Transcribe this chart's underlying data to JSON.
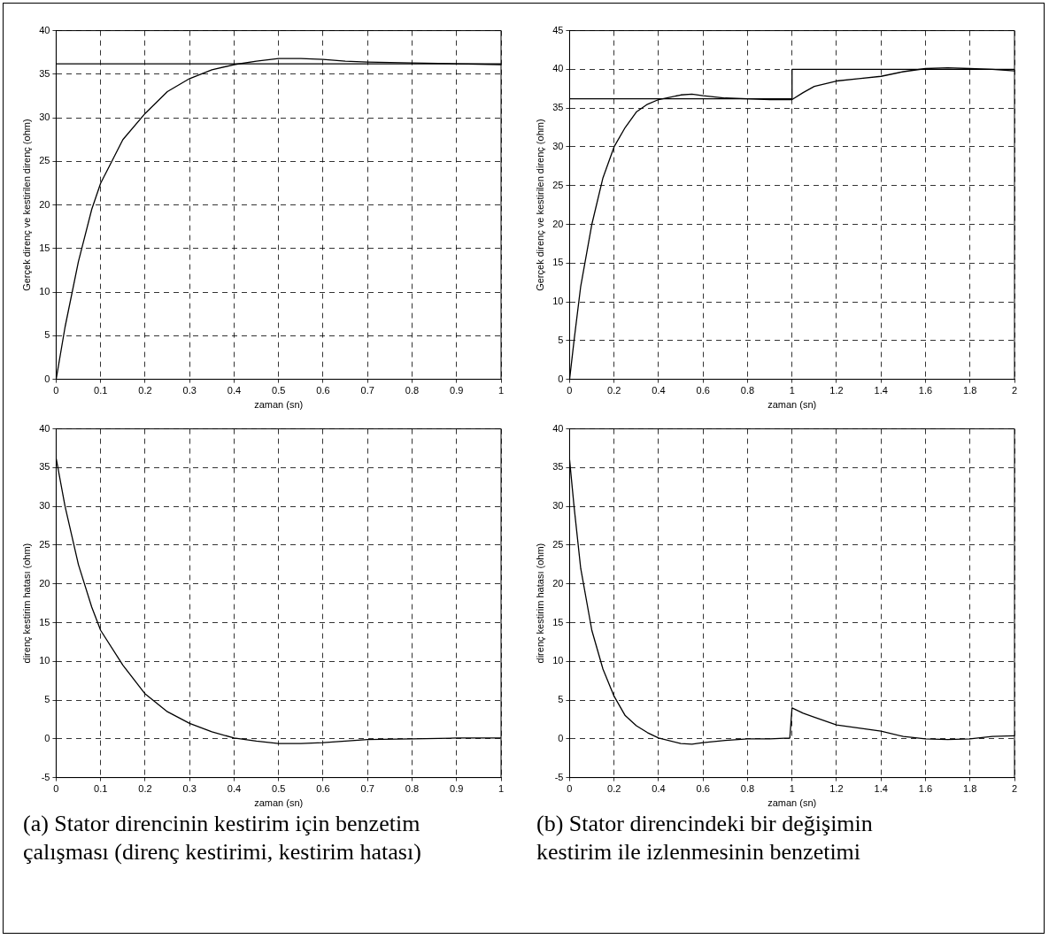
{
  "chart_data": [
    {
      "type": "line",
      "xlabel": "zaman (sn)",
      "ylabel": "Gerçek direnç ve kestirilen direnç (ohm)",
      "xlim": [
        0,
        1
      ],
      "xticks": [
        0,
        0.1,
        0.2,
        0.3,
        0.4,
        0.5,
        0.6,
        0.7,
        0.8,
        0.9,
        1
      ],
      "ylim": [
        0,
        40
      ],
      "yticks": [
        0,
        5,
        10,
        15,
        20,
        25,
        30,
        35,
        40
      ],
      "grid": true,
      "series": [
        {
          "color": "#000000",
          "x": [
            0,
            1
          ],
          "values": [
            36.2,
            36.2
          ]
        },
        {
          "color": "#000000",
          "x": [
            0,
            0.02,
            0.05,
            0.08,
            0.1,
            0.13,
            0.15,
            0.2,
            0.25,
            0.3,
            0.35,
            0.4,
            0.45,
            0.5,
            0.55,
            0.6,
            0.65,
            0.7,
            0.8,
            0.9,
            1
          ],
          "values": [
            0,
            6,
            13.5,
            19.5,
            22.5,
            25.5,
            27.5,
            30.5,
            33,
            34.5,
            35.5,
            36.1,
            36.5,
            36.8,
            36.8,
            36.7,
            36.5,
            36.4,
            36.3,
            36.2,
            36.1
          ]
        }
      ]
    },
    {
      "type": "line",
      "xlabel": "zaman (sn)",
      "ylabel": "Gerçek direnç ve kestirilen direnç (ohm)",
      "xlim": [
        0,
        2
      ],
      "xticks": [
        0,
        0.2,
        0.4,
        0.6,
        0.8,
        1,
        1.2,
        1.4,
        1.6,
        1.8,
        2
      ],
      "ylim": [
        0,
        45
      ],
      "yticks": [
        0,
        5,
        10,
        15,
        20,
        25,
        30,
        35,
        40,
        45
      ],
      "grid": true,
      "series": [
        {
          "color": "#000000",
          "x": [
            0,
            1,
            1,
            2
          ],
          "values": [
            36.2,
            36.2,
            40,
            40
          ]
        },
        {
          "color": "#000000",
          "x": [
            0,
            0.02,
            0.05,
            0.1,
            0.15,
            0.2,
            0.25,
            0.3,
            0.35,
            0.4,
            0.5,
            0.55,
            0.6,
            0.7,
            0.8,
            0.9,
            1,
            1.05,
            1.1,
            1.2,
            1.3,
            1.4,
            1.5,
            1.6,
            1.7,
            1.8,
            1.9,
            2
          ],
          "values": [
            0,
            5,
            12,
            20,
            26,
            30,
            32.5,
            34.5,
            35.5,
            36.1,
            36.7,
            36.8,
            36.6,
            36.3,
            36.2,
            36.1,
            36.1,
            37,
            37.8,
            38.5,
            38.8,
            39.1,
            39.7,
            40.1,
            40.2,
            40.1,
            40,
            39.8
          ]
        }
      ]
    },
    {
      "type": "line",
      "xlabel": "zaman (sn)",
      "ylabel": "direnç kestirim hatası (ohm)",
      "xlim": [
        0,
        1
      ],
      "xticks": [
        0,
        0.1,
        0.2,
        0.3,
        0.4,
        0.5,
        0.6,
        0.7,
        0.8,
        0.9,
        1
      ],
      "ylim": [
        -5,
        40
      ],
      "yticks": [
        -5,
        0,
        5,
        10,
        15,
        20,
        25,
        30,
        35,
        40
      ],
      "grid": true,
      "annotations": [
        "(a) Stator direncinin kestirim için benzetim çalışması (direnç kestirimi, kestirim hatası)"
      ],
      "series": [
        {
          "color": "#000000",
          "x": [
            0,
            0.02,
            0.05,
            0.08,
            0.1,
            0.15,
            0.2,
            0.25,
            0.3,
            0.35,
            0.4,
            0.45,
            0.5,
            0.55,
            0.6,
            0.65,
            0.7,
            0.8,
            0.9,
            1
          ],
          "values": [
            36.2,
            30,
            22.5,
            17,
            14,
            9.5,
            5.8,
            3.5,
            2,
            0.9,
            0.1,
            -0.3,
            -0.6,
            -0.6,
            -0.5,
            -0.3,
            -0.1,
            0,
            0.1,
            0.1
          ]
        }
      ]
    },
    {
      "type": "line",
      "xlabel": "zaman (sn)",
      "ylabel": "direnç kestirim hatası (ohm)",
      "xlim": [
        0,
        2
      ],
      "xticks": [
        0,
        0.2,
        0.4,
        0.6,
        0.8,
        1,
        1.2,
        1.4,
        1.6,
        1.8,
        2
      ],
      "ylim": [
        -5,
        40
      ],
      "yticks": [
        -5,
        0,
        5,
        10,
        15,
        20,
        25,
        30,
        35,
        40
      ],
      "grid": true,
      "annotations": [
        "(b) Stator direncindeki bir değişimin kestirim ile izlenmesinin benzetimi"
      ],
      "series": [
        {
          "color": "#000000",
          "x": [
            0,
            0.02,
            0.05,
            0.1,
            0.15,
            0.2,
            0.25,
            0.3,
            0.35,
            0.4,
            0.5,
            0.55,
            0.6,
            0.7,
            0.8,
            0.9,
            0.99,
            1,
            1.05,
            1.1,
            1.2,
            1.3,
            1.4,
            1.5,
            1.6,
            1.7,
            1.8,
            1.9,
            2
          ],
          "values": [
            36,
            30,
            22,
            14,
            9,
            5.5,
            3,
            1.7,
            0.8,
            0.1,
            -0.6,
            -0.7,
            -0.5,
            -0.2,
            0,
            0,
            0.1,
            4,
            3.3,
            2.8,
            1.8,
            1.4,
            1,
            0.3,
            0,
            -0.1,
            0,
            0.3,
            0.4
          ]
        }
      ]
    }
  ]
}
